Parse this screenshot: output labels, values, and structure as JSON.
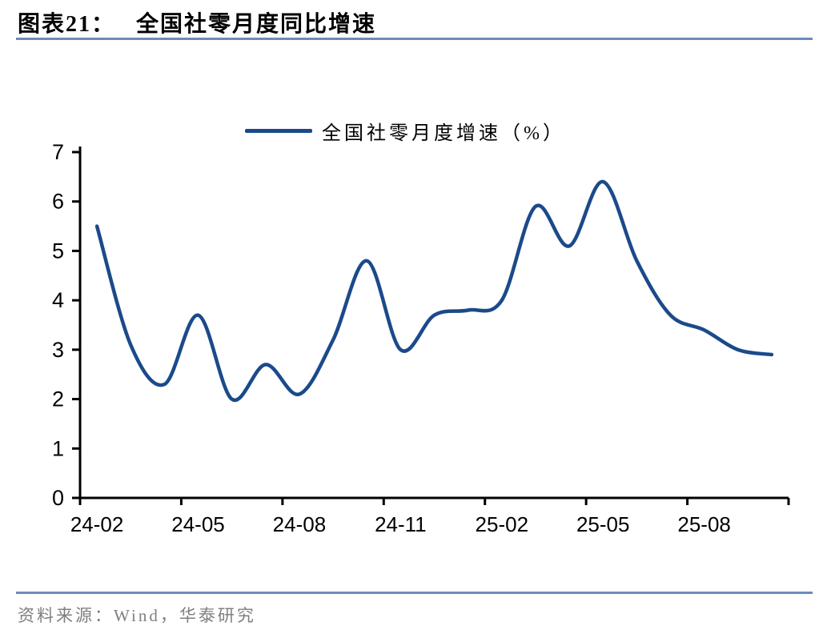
{
  "page": {
    "background": "#ffffff"
  },
  "header": {
    "exhibit_label": "图表21：",
    "title": "全国社零月度同比增速",
    "rule_color": "#6B8CBA"
  },
  "legend": {
    "label": "全国社零月度增速（%）"
  },
  "footer": {
    "source_label": "资料来源：Wind，华泰研究",
    "rule_color": "#6B8CBA",
    "text_color": "#7F7F7F"
  },
  "chart_data": {
    "type": "line",
    "title": "全国社零月度同比增速",
    "smoothed": true,
    "grid": false,
    "legend_position": "top-center",
    "xlabel": "",
    "ylabel": "",
    "ylim": [
      0,
      7
    ],
    "y_ticks": [
      0,
      1,
      2,
      3,
      4,
      5,
      6,
      7
    ],
    "x_tick_labels": [
      "24-02",
      "24-05",
      "24-08",
      "24-11",
      "25-02",
      "25-05",
      "25-08"
    ],
    "categories": [
      "24-02",
      "24-03",
      "24-04",
      "24-05",
      "24-06",
      "24-07",
      "24-08",
      "24-09",
      "24-10",
      "24-11",
      "24-12",
      "25-01",
      "25-02",
      "25-03",
      "25-04",
      "25-05",
      "25-06",
      "25-07",
      "25-08",
      "25-09",
      "25-10"
    ],
    "series": [
      {
        "name": "全国社零月度增速（%）",
        "color": "#1B4A8A",
        "values": [
          5.5,
          3.1,
          2.3,
          3.7,
          2.0,
          2.7,
          2.1,
          3.2,
          4.8,
          3.0,
          3.7,
          3.8,
          4.0,
          5.9,
          5.1,
          6.4,
          4.8,
          3.7,
          3.4,
          3.0,
          2.9
        ]
      }
    ],
    "axis_color": "#000000"
  }
}
